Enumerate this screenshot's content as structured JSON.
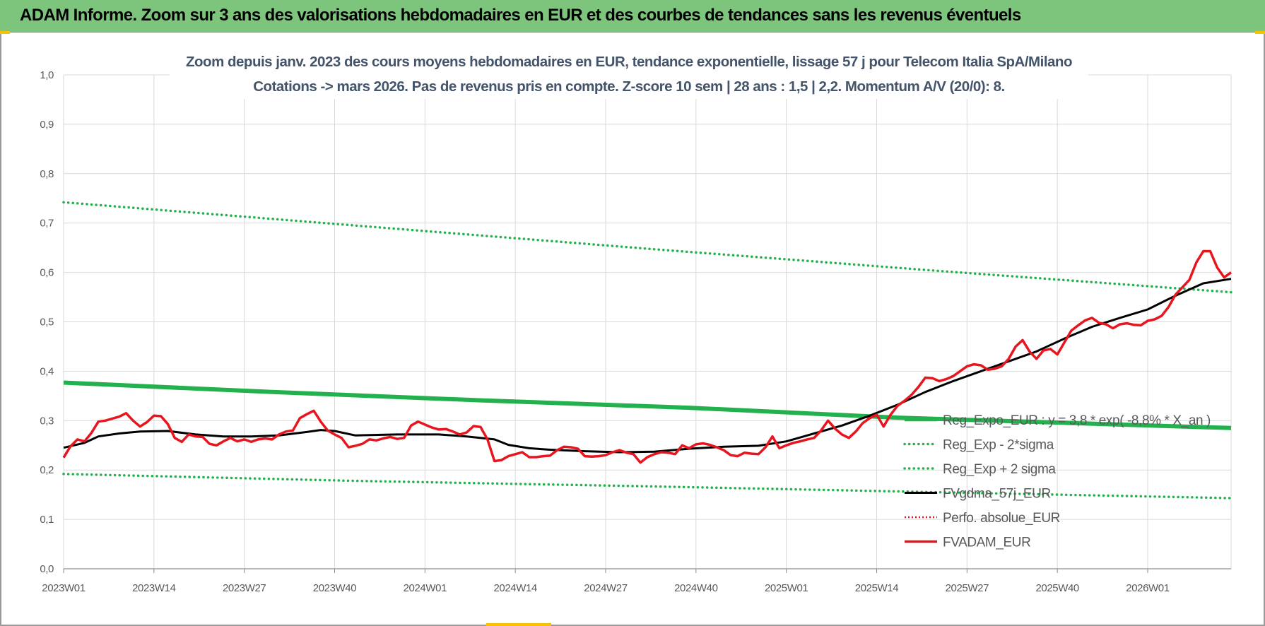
{
  "banner": {
    "title": "ADAM Informe. Zoom sur 3 ans des valorisations hebdomadaires en EUR et des courbes de tendances sans les revenus éventuels"
  },
  "colors": {
    "banner": "#7dc47c",
    "accent": "#f4c400",
    "trend": "#22b14c",
    "band": "#22b14c",
    "price": "#e8141e",
    "smooth": "#000000",
    "perfo": "#e8141e",
    "title_text": "#44546a",
    "grid": "#d9d9d9"
  },
  "chart_data": {
    "type": "line",
    "title": "Zoom depuis janv. 2023 des cours moyens hebdomadaires en EUR, tendance exponentielle, lissage 57 j pour Telecom Italia SpA/Milano",
    "subtitle": "Cotations -> mars 2026. Pas de revenus pris en compte. Z-score 10 sem | 28 ans : 1,5 | 2,2. Momentum A/V (20/0): 8.",
    "xlabel": "",
    "ylabel": "",
    "ylim": [
      0,
      1
    ],
    "yticks": [
      "0,0",
      "0,1",
      "0,2",
      "0,3",
      "0,4",
      "0,5",
      "0,6",
      "0,7",
      "0,8",
      "0,9",
      "1,0"
    ],
    "x_range_weeks": [
      0,
      168
    ],
    "xticks": [
      {
        "w": 0,
        "label": "2023W01"
      },
      {
        "w": 13,
        "label": "2023W14"
      },
      {
        "w": 26,
        "label": "2023W27"
      },
      {
        "w": 39,
        "label": "2023W40"
      },
      {
        "w": 52,
        "label": "2024W01"
      },
      {
        "w": 65,
        "label": "2024W14"
      },
      {
        "w": 78,
        "label": "2024W27"
      },
      {
        "w": 91,
        "label": "2024W40"
      },
      {
        "w": 104,
        "label": "2025W01"
      },
      {
        "w": 117,
        "label": "2025W14"
      },
      {
        "w": 130,
        "label": "2025W27"
      },
      {
        "w": 143,
        "label": "2025W40"
      },
      {
        "w": 156,
        "label": "2026W01"
      }
    ],
    "grid": true,
    "legend_position": "bottom-right",
    "series": [
      {
        "name": "Reg_Expo_EUR : y = 3,8 * exp( -8,8% * X_an )",
        "style": "trend",
        "points": [
          [
            0,
            0.377
          ],
          [
            30,
            0.358
          ],
          [
            60,
            0.341
          ],
          [
            90,
            0.326
          ],
          [
            120,
            0.306
          ],
          [
            168,
            0.285
          ]
        ]
      },
      {
        "name": "Reg_Exp - 2*sigma",
        "style": "band",
        "points": [
          [
            0,
            0.192
          ],
          [
            42,
            0.178
          ],
          [
            84,
            0.167
          ],
          [
            126,
            0.155
          ],
          [
            168,
            0.143
          ]
        ]
      },
      {
        "name": "Reg_Exp + 2 sigma",
        "style": "band",
        "points": [
          [
            0,
            0.742
          ],
          [
            42,
            0.695
          ],
          [
            84,
            0.648
          ],
          [
            126,
            0.603
          ],
          [
            168,
            0.56
          ]
        ]
      },
      {
        "name": "FVgdma_57j_EUR",
        "style": "smooth",
        "points": [
          [
            0,
            0.245
          ],
          [
            3,
            0.255
          ],
          [
            5,
            0.268
          ],
          [
            8,
            0.274
          ],
          [
            11,
            0.278
          ],
          [
            15,
            0.279
          ],
          [
            19,
            0.272
          ],
          [
            23,
            0.268
          ],
          [
            27,
            0.268
          ],
          [
            31,
            0.27
          ],
          [
            35,
            0.277
          ],
          [
            37,
            0.281
          ],
          [
            39,
            0.279
          ],
          [
            42,
            0.27
          ],
          [
            48,
            0.272
          ],
          [
            54,
            0.272
          ],
          [
            58,
            0.268
          ],
          [
            62,
            0.262
          ],
          [
            64,
            0.251
          ],
          [
            67,
            0.244
          ],
          [
            70,
            0.241
          ],
          [
            75,
            0.238
          ],
          [
            80,
            0.236
          ],
          [
            85,
            0.237
          ],
          [
            90,
            0.243
          ],
          [
            95,
            0.247
          ],
          [
            100,
            0.249
          ],
          [
            104,
            0.258
          ],
          [
            108,
            0.274
          ],
          [
            112,
            0.29
          ],
          [
            116,
            0.31
          ],
          [
            120,
            0.332
          ],
          [
            124,
            0.358
          ],
          [
            128,
            0.38
          ],
          [
            132,
            0.4
          ],
          [
            136,
            0.42
          ],
          [
            140,
            0.44
          ],
          [
            144,
            0.466
          ],
          [
            148,
            0.49
          ],
          [
            152,
            0.508
          ],
          [
            156,
            0.525
          ],
          [
            160,
            0.553
          ],
          [
            164,
            0.578
          ],
          [
            168,
            0.587
          ]
        ]
      },
      {
        "name": "Perfo. absolue_EUR",
        "style": "perfo",
        "points": []
      },
      {
        "name": "FVADAM_EUR",
        "style": "price",
        "points": [
          [
            0,
            0.225
          ],
          [
            1,
            0.248
          ],
          [
            2,
            0.262
          ],
          [
            3,
            0.258
          ],
          [
            4,
            0.275
          ],
          [
            5,
            0.298
          ],
          [
            6,
            0.3
          ],
          [
            7,
            0.304
          ],
          [
            8,
            0.308
          ],
          [
            9,
            0.315
          ],
          [
            10,
            0.3
          ],
          [
            11,
            0.288
          ],
          [
            12,
            0.297
          ],
          [
            13,
            0.31
          ],
          [
            14,
            0.309
          ],
          [
            15,
            0.293
          ],
          [
            16,
            0.265
          ],
          [
            17,
            0.257
          ],
          [
            18,
            0.272
          ],
          [
            19,
            0.268
          ],
          [
            20,
            0.267
          ],
          [
            21,
            0.253
          ],
          [
            22,
            0.25
          ],
          [
            23,
            0.258
          ],
          [
            24,
            0.265
          ],
          [
            25,
            0.258
          ],
          [
            26,
            0.262
          ],
          [
            27,
            0.257
          ],
          [
            28,
            0.262
          ],
          [
            29,
            0.264
          ],
          [
            30,
            0.262
          ],
          [
            31,
            0.272
          ],
          [
            32,
            0.278
          ],
          [
            33,
            0.28
          ],
          [
            34,
            0.305
          ],
          [
            35,
            0.313
          ],
          [
            36,
            0.32
          ],
          [
            37,
            0.298
          ],
          [
            38,
            0.28
          ],
          [
            39,
            0.272
          ],
          [
            40,
            0.265
          ],
          [
            41,
            0.246
          ],
          [
            42,
            0.249
          ],
          [
            43,
            0.253
          ],
          [
            44,
            0.262
          ],
          [
            45,
            0.26
          ],
          [
            46,
            0.264
          ],
          [
            47,
            0.267
          ],
          [
            48,
            0.263
          ],
          [
            49,
            0.265
          ],
          [
            50,
            0.29
          ],
          [
            51,
            0.298
          ],
          [
            52,
            0.292
          ],
          [
            53,
            0.286
          ],
          [
            54,
            0.282
          ],
          [
            55,
            0.283
          ],
          [
            56,
            0.278
          ],
          [
            57,
            0.272
          ],
          [
            58,
            0.276
          ],
          [
            59,
            0.289
          ],
          [
            60,
            0.287
          ],
          [
            61,
            0.262
          ],
          [
            62,
            0.218
          ],
          [
            63,
            0.22
          ],
          [
            64,
            0.228
          ],
          [
            65,
            0.232
          ],
          [
            66,
            0.236
          ],
          [
            67,
            0.226
          ],
          [
            68,
            0.226
          ],
          [
            69,
            0.228
          ],
          [
            70,
            0.229
          ],
          [
            71,
            0.24
          ],
          [
            72,
            0.247
          ],
          [
            73,
            0.246
          ],
          [
            74,
            0.243
          ],
          [
            75,
            0.228
          ],
          [
            76,
            0.227
          ],
          [
            77,
            0.228
          ],
          [
            78,
            0.23
          ],
          [
            79,
            0.236
          ],
          [
            80,
            0.24
          ],
          [
            81,
            0.235
          ],
          [
            82,
            0.232
          ],
          [
            83,
            0.215
          ],
          [
            84,
            0.226
          ],
          [
            85,
            0.232
          ],
          [
            86,
            0.236
          ],
          [
            87,
            0.235
          ],
          [
            88,
            0.232
          ],
          [
            89,
            0.25
          ],
          [
            90,
            0.244
          ],
          [
            91,
            0.252
          ],
          [
            92,
            0.254
          ],
          [
            93,
            0.251
          ],
          [
            94,
            0.246
          ],
          [
            95,
            0.24
          ],
          [
            96,
            0.23
          ],
          [
            97,
            0.228
          ],
          [
            98,
            0.235
          ],
          [
            99,
            0.233
          ],
          [
            100,
            0.232
          ],
          [
            101,
            0.246
          ],
          [
            102,
            0.268
          ],
          [
            103,
            0.244
          ],
          [
            104,
            0.25
          ],
          [
            105,
            0.255
          ],
          [
            106,
            0.258
          ],
          [
            107,
            0.262
          ],
          [
            108,
            0.265
          ],
          [
            109,
            0.28
          ],
          [
            110,
            0.3
          ],
          [
            111,
            0.284
          ],
          [
            112,
            0.272
          ],
          [
            113,
            0.265
          ],
          [
            114,
            0.278
          ],
          [
            115,
            0.295
          ],
          [
            116,
            0.305
          ],
          [
            117,
            0.312
          ],
          [
            118,
            0.288
          ],
          [
            119,
            0.312
          ],
          [
            120,
            0.33
          ],
          [
            121,
            0.34
          ],
          [
            122,
            0.352
          ],
          [
            123,
            0.368
          ],
          [
            124,
            0.387
          ],
          [
            125,
            0.386
          ],
          [
            126,
            0.38
          ],
          [
            127,
            0.384
          ],
          [
            128,
            0.39
          ],
          [
            129,
            0.4
          ],
          [
            130,
            0.41
          ],
          [
            131,
            0.414
          ],
          [
            132,
            0.412
          ],
          [
            133,
            0.403
          ],
          [
            134,
            0.405
          ],
          [
            135,
            0.41
          ],
          [
            136,
            0.425
          ],
          [
            137,
            0.45
          ],
          [
            138,
            0.463
          ],
          [
            139,
            0.44
          ],
          [
            140,
            0.425
          ],
          [
            141,
            0.442
          ],
          [
            142,
            0.445
          ],
          [
            143,
            0.434
          ],
          [
            144,
            0.458
          ],
          [
            145,
            0.482
          ],
          [
            146,
            0.493
          ],
          [
            147,
            0.503
          ],
          [
            148,
            0.508
          ],
          [
            149,
            0.498
          ],
          [
            150,
            0.495
          ],
          [
            151,
            0.487
          ],
          [
            152,
            0.495
          ],
          [
            153,
            0.497
          ],
          [
            154,
            0.494
          ],
          [
            155,
            0.493
          ],
          [
            156,
            0.502
          ],
          [
            157,
            0.505
          ],
          [
            158,
            0.512
          ],
          [
            159,
            0.53
          ],
          [
            160,
            0.555
          ],
          [
            161,
            0.57
          ],
          [
            162,
            0.585
          ],
          [
            163,
            0.62
          ],
          [
            164,
            0.643
          ],
          [
            165,
            0.643
          ],
          [
            166,
            0.61
          ],
          [
            167,
            0.59
          ],
          [
            168,
            0.6
          ]
        ]
      }
    ]
  }
}
